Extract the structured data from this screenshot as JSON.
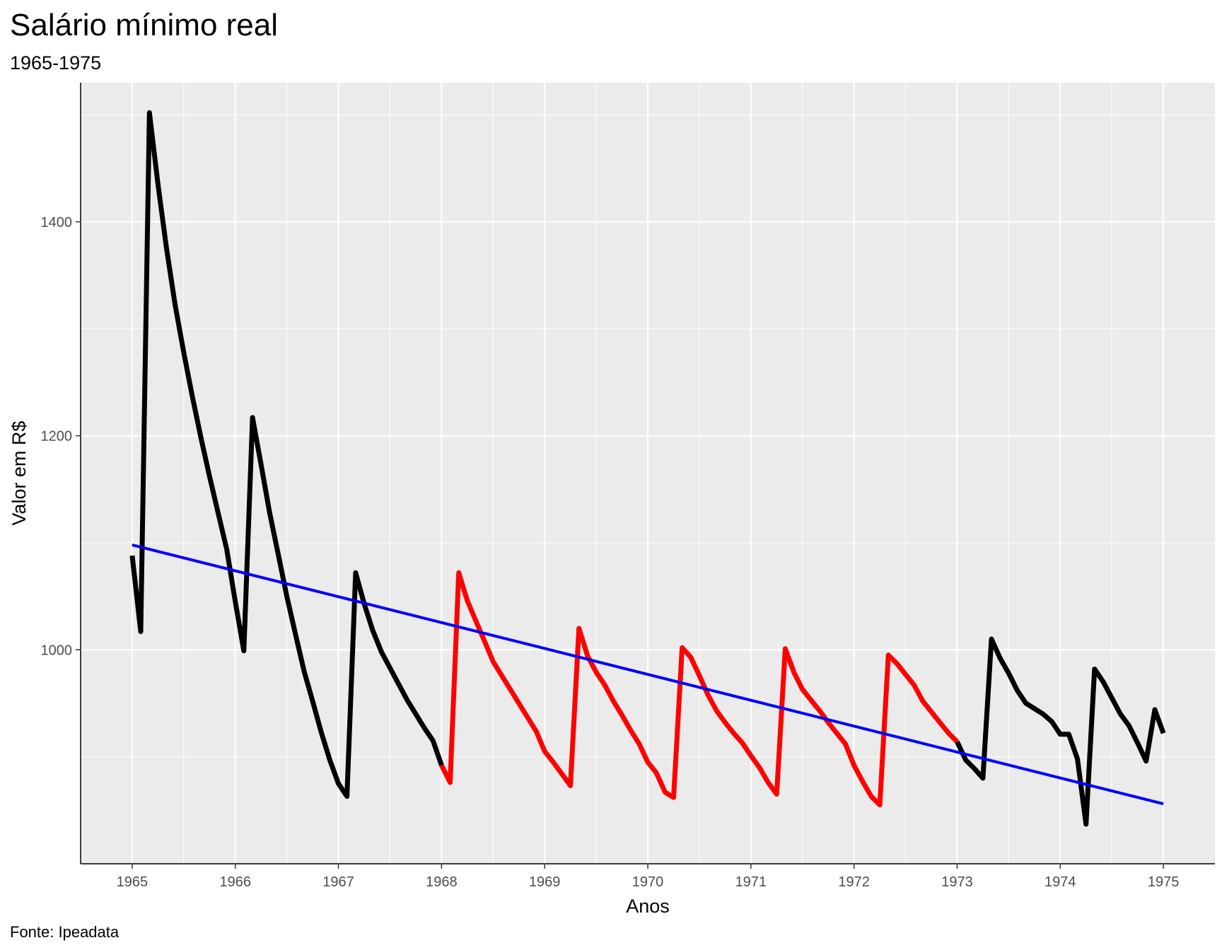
{
  "chart_data": {
    "type": "line",
    "title": "Salário mínimo real",
    "subtitle": "1965-1975",
    "caption": "Fonte: Ipeadata",
    "xlabel": "Anos",
    "ylabel": "Valor em R$",
    "xlim": [
      1964.5,
      1975.5
    ],
    "ylim": [
      800,
      1530
    ],
    "x_ticks": [
      1965,
      1966,
      1967,
      1968,
      1969,
      1970,
      1971,
      1972,
      1973,
      1974,
      1975
    ],
    "y_ticks": [
      1000,
      1200,
      1400
    ],
    "grid": true,
    "legend": "none",
    "colors": {
      "panel": "#ebebeb",
      "grid": "#ffffff",
      "series_default": "#000000",
      "series_highlight": "#ff0000",
      "trend": "#0000ff"
    },
    "series": [
      {
        "color": "#000000",
        "x": [
          1965.0,
          1965.083,
          1965.167,
          1965.25,
          1965.333,
          1965.417,
          1965.5,
          1965.583,
          1965.667,
          1965.75,
          1965.833,
          1965.917,
          1966.0,
          1966.083,
          1966.167,
          1966.25,
          1966.333,
          1966.417,
          1966.5,
          1966.583,
          1966.667,
          1966.75,
          1966.833,
          1966.917,
          1967.0,
          1967.083,
          1967.167,
          1967.25,
          1967.333,
          1967.417,
          1967.5,
          1967.583,
          1967.667,
          1967.75,
          1967.833,
          1967.917,
          1968.0
        ],
        "y": [
          1088,
          1017,
          1502,
          1435,
          1375,
          1322,
          1278,
          1237,
          1198,
          1162,
          1128,
          1094,
          1045,
          999,
          1217,
          1173,
          1128,
          1089,
          1050,
          1015,
          980,
          952,
          923,
          897,
          875,
          863,
          1072,
          1043,
          1018,
          998,
          983,
          968,
          953,
          940,
          927,
          915,
          892
        ]
      },
      {
        "color": "#ff0000",
        "x": [
          1968.0,
          1968.083,
          1968.167,
          1968.25,
          1968.333,
          1968.417,
          1968.5,
          1968.583,
          1968.667,
          1968.75,
          1968.833,
          1968.917,
          1969.0,
          1969.083,
          1969.167,
          1969.25,
          1969.333,
          1969.417,
          1969.5,
          1969.583,
          1969.667,
          1969.75,
          1969.833,
          1969.917,
          1970.0,
          1970.083,
          1970.167,
          1970.25,
          1970.333,
          1970.417,
          1970.5,
          1970.583,
          1970.667,
          1970.75,
          1970.833,
          1970.917,
          1971.0,
          1971.083,
          1971.167,
          1971.25,
          1971.333,
          1971.417,
          1971.5,
          1971.583,
          1971.667,
          1971.75,
          1971.833,
          1971.917,
          1972.0,
          1972.083,
          1972.167,
          1972.25,
          1972.333,
          1972.417,
          1972.5,
          1972.583,
          1972.667,
          1972.75,
          1972.833,
          1972.917,
          1973.0
        ],
        "y": [
          892,
          876,
          1072,
          1046,
          1027,
          1008,
          989,
          976,
          963,
          950,
          937,
          924,
          905,
          895,
          884,
          873,
          1020,
          994,
          979,
          967,
          952,
          939,
          925,
          912,
          895,
          885,
          867,
          862,
          1002,
          993,
          976,
          958,
          943,
          932,
          922,
          913,
          901,
          890,
          876,
          865,
          1001,
          979,
          963,
          953,
          943,
          932,
          922,
          912,
          892,
          877,
          863,
          855,
          995,
          987,
          977,
          967,
          952,
          942,
          932,
          922,
          914
        ]
      },
      {
        "color": "#000000",
        "x": [
          1973.0,
          1973.083,
          1973.167,
          1973.25,
          1973.333,
          1973.417,
          1973.5,
          1973.583,
          1973.667,
          1973.75,
          1973.833,
          1973.917,
          1974.0,
          1974.083,
          1974.167,
          1974.25,
          1974.333,
          1974.417,
          1974.5,
          1974.583,
          1974.667,
          1974.75,
          1974.833,
          1974.917,
          1975.0
        ],
        "y": [
          914,
          897,
          889,
          880,
          1010,
          992,
          978,
          962,
          950,
          945,
          940,
          933,
          921,
          921,
          898,
          837,
          982,
          970,
          955,
          940,
          929,
          913,
          896,
          944,
          922
        ]
      },
      {
        "color": "#0000ff",
        "trend": true,
        "x": [
          1965.0,
          1975.0
        ],
        "y": [
          1098,
          856
        ]
      }
    ]
  }
}
